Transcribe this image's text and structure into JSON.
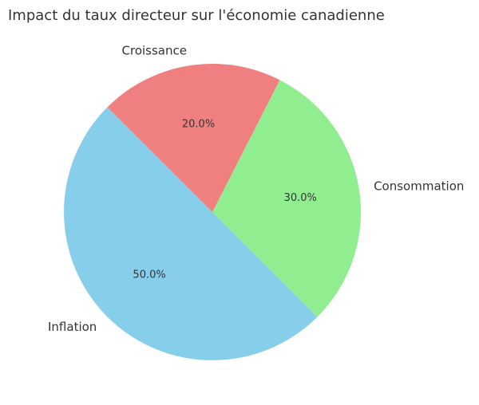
{
  "chart_data": {
    "type": "pie",
    "title": "Impact du taux directeur sur l'économie canadienne",
    "categories": [
      "Inflation",
      "Consommation",
      "Croissance"
    ],
    "values": [
      50,
      30,
      20
    ],
    "value_labels": [
      "50.0%",
      "30.0%",
      "20.0%"
    ],
    "colors": [
      "#87ceeb",
      "#90ee90",
      "#f08080"
    ]
  }
}
